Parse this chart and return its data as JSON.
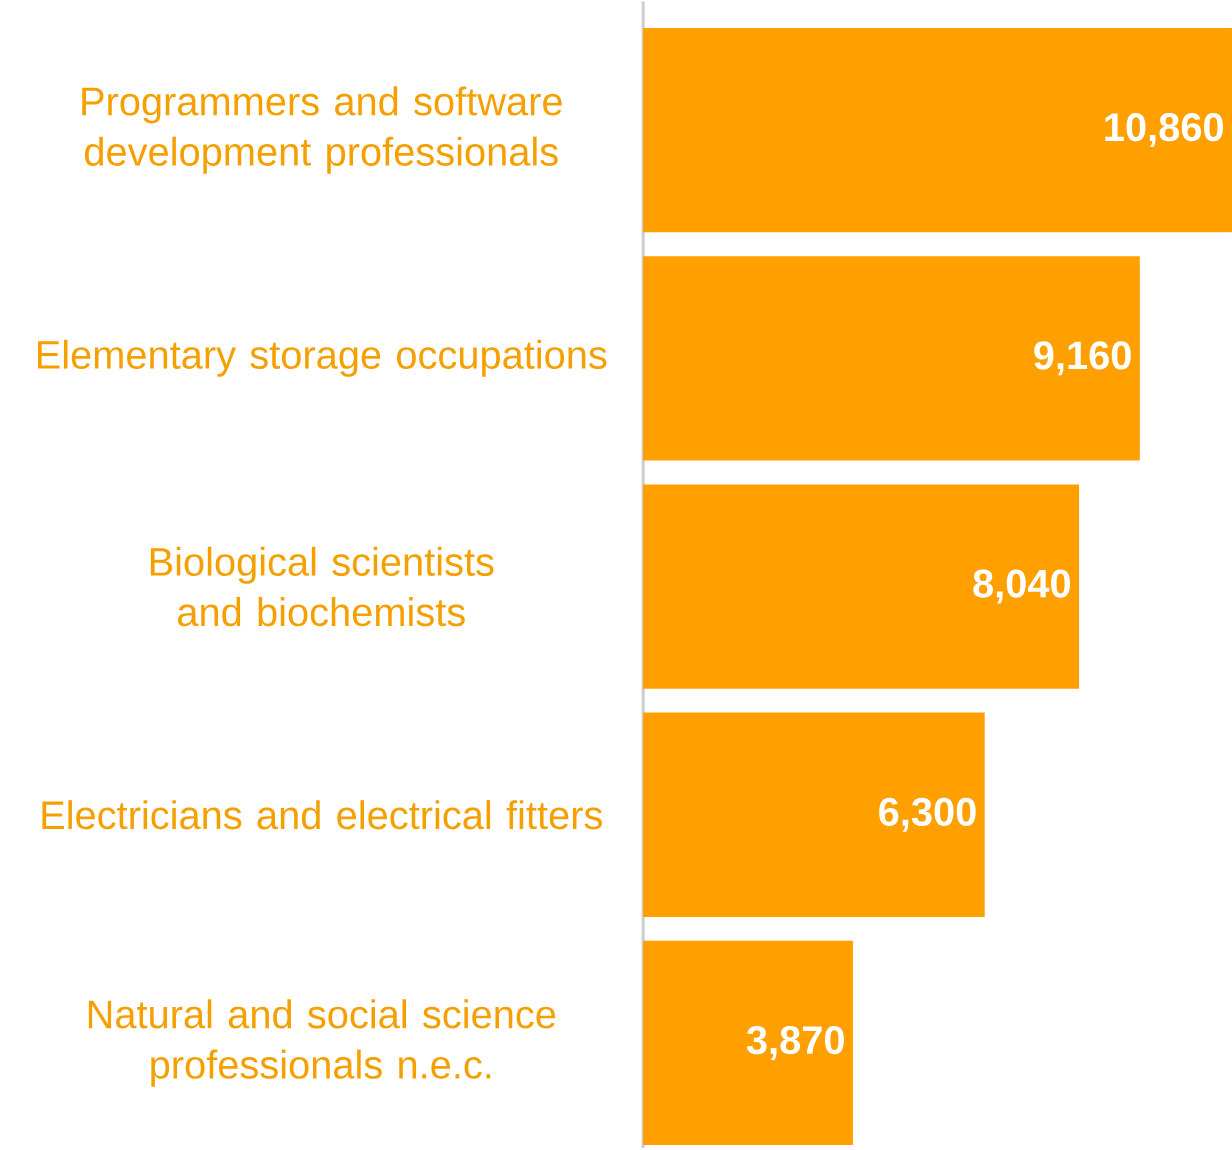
{
  "chart_data": {
    "type": "bar",
    "orientation": "horizontal",
    "categories": [
      "Programmers and software development professionals",
      "Elementary storage occupations",
      "Biological scientists and biochemists",
      "Electricians and electrical fitters",
      "Natural and social science professionals n.e.c."
    ],
    "values": [
      10860,
      9160,
      8040,
      6300,
      3870
    ],
    "value_labels": [
      "10,860",
      "9,160",
      "8,040",
      "6,300",
      "3,870"
    ],
    "color": "#ffa000"
  }
}
